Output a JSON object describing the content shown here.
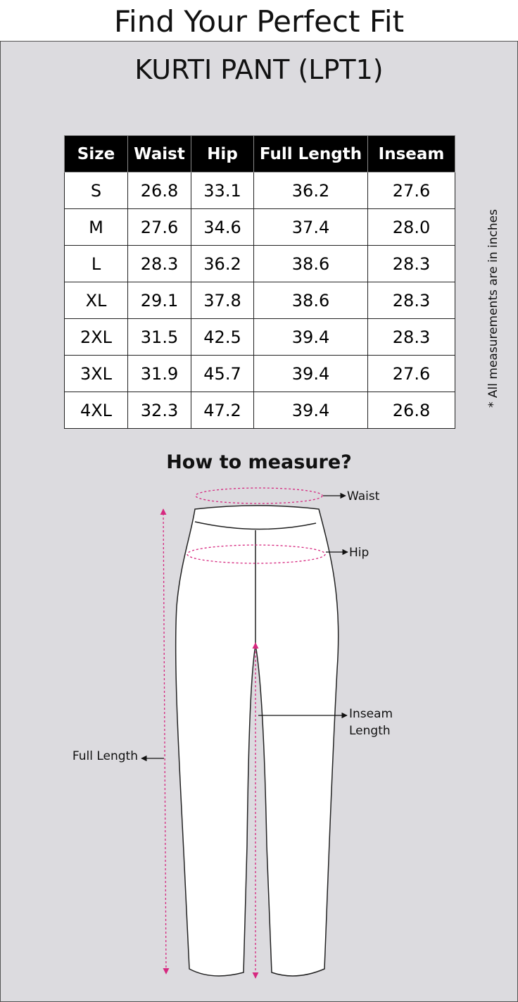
{
  "header": {
    "title": "Find Your Perfect Fit"
  },
  "panel": {
    "title": "KURTI PANT (LPT1)",
    "table": {
      "columns": [
        "Size",
        "Waist",
        "Hip",
        "Full Length",
        "Inseam"
      ],
      "rows": [
        [
          "S",
          "26.8",
          "33.1",
          "36.2",
          "27.6"
        ],
        [
          "M",
          "27.6",
          "34.6",
          "37.4",
          "28.0"
        ],
        [
          "L",
          "28.3",
          "36.2",
          "38.6",
          "28.3"
        ],
        [
          "XL",
          "29.1",
          "37.8",
          "38.6",
          "28.3"
        ],
        [
          "2XL",
          "31.5",
          "42.5",
          "39.4",
          "28.3"
        ],
        [
          "3XL",
          "31.9",
          "45.7",
          "39.4",
          "27.6"
        ],
        [
          "4XL",
          "32.3",
          "47.2",
          "39.4",
          "26.8"
        ]
      ]
    },
    "note": "* All measurements are in inches",
    "how_to_measure": "How to measure?",
    "diagram": {
      "waist": "Waist",
      "hip": "Hip",
      "inseam": [
        "Inseam",
        "Length"
      ],
      "full_length": "Full Length"
    }
  }
}
